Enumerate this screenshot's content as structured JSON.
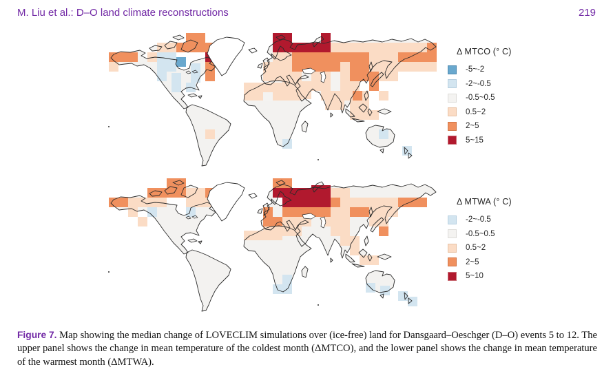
{
  "header": {
    "left": "M. Liu et al.: D–O land climate reconstructions",
    "page_number": "219"
  },
  "caption": {
    "label": "Figure 7.",
    "text": " Map showing the median change of LOVECLIM simulations over (ice-free) land for Dansgaard–Oeschger (D–O) events 5 to 12. The upper panel shows the change in mean temperature of the coldest month (ΔMTCO), and the lower panel shows the change in mean temperature of the warmest month (ΔMTWA)."
  },
  "colors": {
    "header_text": "#7128a5",
    "land": "#f3f2f0",
    "ocean": "#ffffff",
    "coastline": "#2b2b2b",
    "bins": {
      "m": "#69a8ce",
      "b": "#d3e5f0",
      "w": "#f4f3f1",
      "l": "#fbdcc5",
      "o": "#f0905e",
      "d": "#b1192e"
    },
    "bin_borders": {
      "m": "#4d89b0",
      "b": "#b7cfe0",
      "w": "#dddcd9",
      "l": "#e8c2a4",
      "o": "#d27445",
      "d": "#c96b74"
    }
  },
  "chart_data": [
    {
      "type": "map",
      "title": "Δ MTCO (° C)",
      "legend": [
        {
          "key": "m",
          "range": "-5~-2"
        },
        {
          "key": "b",
          "range": "-2~-0.5"
        },
        {
          "key": "w",
          "range": "-0.5~0.5"
        },
        {
          "key": "l",
          "range": "0.5~2"
        },
        {
          "key": "o",
          "range": "2~5"
        },
        {
          "key": "d",
          "range": "5~15"
        }
      ],
      "cells": [
        [
          "l",
          59,
          30,
          28,
          14
        ],
        [
          "l",
          73,
          16,
          28,
          14
        ],
        [
          "l",
          3,
          44,
          14,
          14
        ],
        [
          "l",
          143,
          142,
          14,
          14
        ],
        [
          "l",
          241,
          30,
          28,
          14
        ],
        [
          "l",
          325,
          16,
          154,
          14
        ],
        [
          "l",
          227,
          44,
          42,
          14
        ],
        [
          "l",
          339,
          44,
          14,
          14
        ],
        [
          "l",
          381,
          44,
          98,
          14
        ],
        [
          "l",
          227,
          58,
          42,
          14
        ],
        [
          "l",
          269,
          58,
          70,
          14
        ],
        [
          "l",
          339,
          58,
          14,
          14
        ],
        [
          "l",
          395,
          58,
          28,
          14
        ],
        [
          "l",
          255,
          72,
          42,
          14
        ],
        [
          "l",
          297,
          72,
          70,
          14
        ],
        [
          "l",
          311,
          86,
          70,
          14
        ],
        [
          "l",
          395,
          86,
          14,
          14
        ],
        [
          "l",
          317,
          100,
          28,
          14
        ],
        [
          "l",
          353,
          100,
          28,
          14
        ],
        [
          "l",
          353,
          114,
          14,
          14
        ],
        [
          "l",
          367,
          114,
          28,
          14
        ],
        [
          "l",
          381,
          30,
          42,
          14
        ],
        [
          "l",
          199,
          74,
          84,
          12
        ],
        [
          "l",
          199,
          86,
          84,
          14
        ],
        [
          "l",
          269,
          76,
          28,
          22
        ],
        [
          "o",
          3,
          30,
          42,
          14
        ],
        [
          "o",
          101,
          16,
          56,
          14
        ],
        [
          "o",
          115,
          2,
          28,
          14
        ],
        [
          "o",
          143,
          44,
          14,
          14
        ],
        [
          "o",
          143,
          58,
          14,
          14
        ],
        [
          "o",
          269,
          30,
          112,
          14
        ],
        [
          "o",
          423,
          30,
          56,
          14
        ],
        [
          "o",
          269,
          44,
          70,
          14
        ],
        [
          "o",
          353,
          44,
          28,
          14
        ],
        [
          "o",
          353,
          58,
          28,
          14
        ],
        [
          "o",
          381,
          58,
          14,
          14
        ],
        [
          "o",
          381,
          72,
          14,
          14
        ],
        [
          "o",
          357,
          86,
          14,
          14
        ],
        [
          "o",
          465,
          16,
          14,
          14
        ],
        [
          "d",
          143,
          30,
          14,
          14
        ],
        [
          "d",
          241,
          2,
          28,
          14
        ],
        [
          "d",
          241,
          16,
          84,
          14
        ],
        [
          "d",
          311,
          2,
          14,
          14
        ],
        [
          "w",
          283,
          58,
          14,
          14
        ],
        [
          "w",
          325,
          58,
          14,
          14
        ],
        [
          "w",
          325,
          72,
          14,
          14
        ],
        [
          "w",
          227,
          88,
          14,
          12
        ],
        [
          "b",
          73,
          30,
          14,
          14
        ],
        [
          "b",
          87,
          30,
          14,
          14
        ],
        [
          "b",
          73,
          44,
          14,
          14
        ],
        [
          "b",
          87,
          44,
          14,
          14
        ],
        [
          "b",
          122,
          46,
          14,
          14
        ],
        [
          "b",
          73,
          58,
          14,
          14
        ],
        [
          "b",
          94,
          60,
          14,
          14
        ],
        [
          "b",
          122,
          60,
          14,
          14
        ],
        [
          "b",
          94,
          74,
          14,
          14
        ],
        [
          "b",
          115,
          74,
          14,
          14
        ],
        [
          "b",
          255,
          156,
          14,
          14
        ],
        [
          "b",
          395,
          142,
          14,
          14
        ],
        [
          "b",
          429,
          166,
          14,
          14
        ],
        [
          "m",
          101,
          37,
          14,
          14
        ]
      ]
    },
    {
      "type": "map",
      "title": "Δ MTWA (° C)",
      "legend": [
        {
          "key": "b",
          "range": "-2~-0.5"
        },
        {
          "key": "w",
          "range": "-0.5~0.5"
        },
        {
          "key": "l",
          "range": "0.5~2"
        },
        {
          "key": "o",
          "range": "2~5"
        },
        {
          "key": "d",
          "range": "5~10"
        }
      ],
      "cells": [
        [
          "l",
          31,
          30,
          56,
          14
        ],
        [
          "l",
          115,
          16,
          28,
          14
        ],
        [
          "l",
          115,
          30,
          42,
          14
        ],
        [
          "l",
          31,
          44,
          14,
          14
        ],
        [
          "l",
          45,
          58,
          14,
          14
        ],
        [
          "l",
          255,
          58,
          42,
          14
        ],
        [
          "l",
          227,
          72,
          56,
          14
        ],
        [
          "l",
          199,
          78,
          56,
          14
        ],
        [
          "l",
          311,
          16,
          42,
          14
        ],
        [
          "l",
          339,
          30,
          84,
          14
        ],
        [
          "l",
          325,
          44,
          28,
          14
        ],
        [
          "l",
          381,
          44,
          42,
          14
        ],
        [
          "l",
          311,
          58,
          42,
          14
        ],
        [
          "l",
          325,
          72,
          28,
          14
        ],
        [
          "l",
          339,
          86,
          28,
          14
        ],
        [
          "l",
          353,
          100,
          14,
          14
        ],
        [
          "l",
          367,
          114,
          28,
          14
        ],
        [
          "l",
          381,
          58,
          28,
          14
        ],
        [
          "o",
          3,
          30,
          28,
          14
        ],
        [
          "o",
          59,
          16,
          56,
          14
        ],
        [
          "o",
          87,
          2,
          28,
          14
        ],
        [
          "o",
          143,
          16,
          14,
          14
        ],
        [
          "o",
          227,
          44,
          14,
          28
        ],
        [
          "o",
          241,
          58,
          14,
          14
        ],
        [
          "o",
          255,
          44,
          70,
          14
        ],
        [
          "o",
          325,
          30,
          14,
          14
        ],
        [
          "o",
          423,
          30,
          42,
          14
        ],
        [
          "o",
          353,
          44,
          28,
          14
        ],
        [
          "o",
          395,
          72,
          14,
          14
        ],
        [
          "o",
          241,
          2,
          28,
          14
        ],
        [
          "d",
          241,
          16,
          56,
          14
        ],
        [
          "d",
          255,
          30,
          70,
          14
        ],
        [
          "d",
          297,
          12,
          28,
          18
        ],
        [
          "b",
          59,
          44,
          14,
          14
        ],
        [
          "b",
          115,
          44,
          14,
          14
        ],
        [
          "b",
          255,
          142,
          14,
          14
        ],
        [
          "b",
          241,
          156,
          14,
          14
        ],
        [
          "b",
          255,
          156,
          14,
          14
        ],
        [
          "b",
          376,
          154,
          14,
          14
        ],
        [
          "b",
          397,
          158,
          14,
          14
        ],
        [
          "b",
          423,
          166,
          14,
          14
        ],
        [
          "b",
          437,
          174,
          14,
          14
        ]
      ]
    }
  ]
}
